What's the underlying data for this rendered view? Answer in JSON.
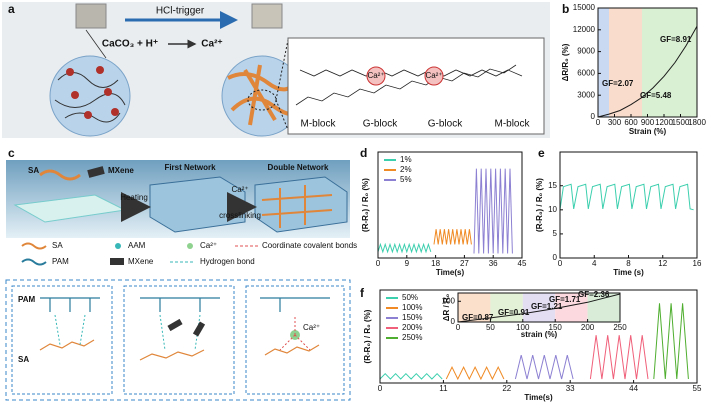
{
  "panel_labels": [
    "a",
    "b",
    "c",
    "d",
    "e",
    "f"
  ],
  "panel_a": {
    "trigger": "HCl-trigger",
    "reaction": "CaCO₃ + H⁺",
    "product": "Ca²⁺",
    "ions": [
      "Ca²⁺",
      "Ca²⁺"
    ],
    "blocks": [
      "M-block",
      "G-block",
      "G-block",
      "M-block"
    ]
  },
  "panel_c": {
    "inputs": [
      "SA",
      "MXene"
    ],
    "steps": [
      "Heating",
      "Ca²⁺",
      "crosslinking"
    ],
    "stages": [
      "First Network",
      "Double Network"
    ],
    "legend": [
      "SA",
      "AAM",
      "Ca²⁺",
      "Coordinate covalent bonds",
      "PAM",
      "MXene",
      "Hydrogen bond"
    ],
    "chains": [
      "PAM",
      "SA"
    ],
    "ion": "Ca²⁺"
  },
  "chart_data": [
    {
      "type": "line",
      "x_label": "Strain (%)",
      "y_label": "ΔR/R₀ (%)",
      "xlim": [
        0,
        1800
      ],
      "ylim": [
        0,
        15000
      ],
      "xticks": [
        0,
        300,
        600,
        900,
        1200,
        1500,
        1800
      ],
      "yticks": [
        0,
        3000,
        6000,
        9000,
        12000,
        15000
      ],
      "regions": [
        {
          "from": 0,
          "to": 200,
          "color": "#c9d9f2"
        },
        {
          "from": 200,
          "to": 800,
          "color": "#f9dccb"
        },
        {
          "from": 800,
          "to": 1800,
          "color": "#d9f0d3"
        }
      ],
      "annotations": [
        "GF=2.07",
        "GF=5.48",
        "GF=8.91"
      ],
      "series": [
        {
          "color": "#1a1a1a",
          "x": [
            0,
            200,
            400,
            600,
            800,
            1000,
            1200,
            1400,
            1600,
            1800
          ],
          "values": [
            0,
            400,
            900,
            1700,
            2700,
            4000,
            5600,
            7500,
            9800,
            12500
          ]
        }
      ]
    },
    {
      "type": "line",
      "x_label": "Time(s)",
      "y_label": "(R-R₀) / R₀ (%)",
      "legend": "upper left",
      "xlim": [
        0,
        45
      ],
      "ylim": [
        0,
        7
      ],
      "xticks": [
        0,
        9,
        18,
        27,
        36,
        45
      ],
      "series": [
        {
          "name": "1%",
          "color": "#3ccfae",
          "x": [
            0,
            0.75,
            1.5,
            2.25,
            3,
            3.75,
            4.5,
            5.25,
            6,
            6.75,
            7.5,
            8.25,
            9,
            9.75,
            10.5,
            11.25,
            12,
            12.75,
            13.5,
            14.25,
            15,
            15.75,
            16.5
          ],
          "values": [
            0.4,
            0.9,
            0.4,
            0.9,
            0.4,
            0.9,
            0.4,
            0.9,
            0.4,
            0.9,
            0.4,
            0.9,
            0.4,
            0.9,
            0.4,
            0.9,
            0.4,
            0.9,
            0.4,
            0.9,
            0.4,
            0.9,
            0.4
          ]
        },
        {
          "name": "2%",
          "color": "#f08a24",
          "x": [
            17.5,
            18.15,
            18.8,
            19.45,
            20.1,
            20.75,
            21.4,
            22.05,
            22.7,
            23.35,
            24,
            24.65,
            25.3,
            25.95,
            26.6,
            27.25,
            27.9,
            28.55,
            29.2
          ],
          "values": [
            0.9,
            1.9,
            0.9,
            1.9,
            0.9,
            1.9,
            0.9,
            1.9,
            0.9,
            1.9,
            0.9,
            1.9,
            0.9,
            1.9,
            0.9,
            1.9,
            0.9,
            1.9,
            0.9
          ]
        },
        {
          "name": "5%",
          "color": "#8c80d2",
          "x": [
            30,
            30.75,
            31.5,
            32.25,
            33,
            33.75,
            34.5,
            35.25,
            36,
            36.75,
            37.5,
            38.25,
            39,
            39.75,
            40.5,
            41.25,
            42
          ],
          "values": [
            0.3,
            5.9,
            0.3,
            5.9,
            0.3,
            5.9,
            0.3,
            5.9,
            0.3,
            5.9,
            0.3,
            5.9,
            0.3,
            5.9,
            0.3,
            5.9,
            0.3
          ]
        }
      ]
    },
    {
      "type": "line",
      "x_label": "Time (s)",
      "y_label": "(R-R₀) / R₀ (%)",
      "xlim": [
        0,
        16
      ],
      "ylim": [
        0,
        22
      ],
      "xticks": [
        0,
        4,
        8,
        12,
        16
      ],
      "yticks": [
        0,
        5,
        10,
        15
      ],
      "series": [
        {
          "color": "#3ccfae",
          "x": [
            0,
            0.4,
            1.3,
            1.6,
            2.1,
            3.0,
            3.3,
            3.8,
            4.7,
            5.0,
            5.5,
            6.4,
            6.7,
            7.2,
            8.1,
            8.4,
            8.9,
            9.8,
            10.1,
            10.6,
            11.5,
            11.8,
            12.3,
            13.2,
            13.5,
            14.0,
            14.9,
            15.2,
            15.6
          ],
          "values": [
            10,
            14.8,
            15.3,
            10.2,
            14.8,
            15.3,
            10.2,
            14.8,
            15.3,
            10.2,
            14.8,
            15.3,
            10.2,
            14.8,
            15.3,
            10.2,
            14.8,
            15.3,
            10.2,
            14.8,
            15.3,
            10.2,
            14.8,
            15.3,
            10.2,
            14.8,
            15.3,
            10.2,
            10
          ]
        }
      ]
    },
    {
      "type": "line",
      "x_label": "Time(s)",
      "y_label": "(R-R₀) / R₀ (%)",
      "legend": "upper left",
      "xlim": [
        0,
        55
      ],
      "ylim": [
        0,
        7
      ],
      "xticks": [
        0,
        11,
        22,
        33,
        44,
        55
      ],
      "series": [
        {
          "name": "50%",
          "color": "#3ccfae",
          "x": [
            0,
            0.9,
            1.8,
            2.7,
            3.6,
            4.5,
            5.4,
            6.3,
            7.2,
            8.1,
            9,
            9.9,
            10.8
          ],
          "values": [
            0.3,
            0.7,
            0.3,
            0.7,
            0.3,
            0.7,
            0.3,
            0.7,
            0.3,
            0.7,
            0.3,
            0.7,
            0.3
          ]
        },
        {
          "name": "100%",
          "color": "#f08a24",
          "x": [
            11.5,
            12.5,
            13.5,
            14.5,
            15.5,
            16.5,
            17.5,
            18.5,
            19.5,
            20.5,
            21.5
          ],
          "values": [
            0.3,
            1.2,
            0.3,
            1.2,
            0.3,
            1.2,
            0.3,
            1.2,
            0.3,
            1.2,
            0.3
          ]
        },
        {
          "name": "150%",
          "color": "#8c80d2",
          "x": [
            23.5,
            24.5,
            25.5,
            26.5,
            27.5,
            28.5,
            29.5,
            30.5,
            31.5,
            32.5,
            33.5
          ],
          "values": [
            0.3,
            2.1,
            0.3,
            2.1,
            0.3,
            2.1,
            0.3,
            2.1,
            0.3,
            2.1,
            0.3
          ]
        },
        {
          "name": "200%",
          "color": "#f0607a",
          "x": [
            36.5,
            37.5,
            38.5,
            39.5,
            40.5,
            41.5,
            42.5,
            43.5,
            44.5,
            45.5,
            46.5
          ],
          "values": [
            0.3,
            3.6,
            0.3,
            3.6,
            0.3,
            3.6,
            0.3,
            3.6,
            0.3,
            3.6,
            0.3
          ]
        },
        {
          "name": "250%",
          "color": "#4fae2f",
          "x": [
            47.5,
            48.5,
            49.5,
            50.5,
            51.5,
            52.5,
            53.5
          ],
          "values": [
            0.3,
            6,
            0.3,
            6,
            0.3,
            6,
            0.3
          ]
        }
      ]
    },
    {
      "type": "line",
      "x_label": "strain (%)",
      "y_label": "ΔR / R₀",
      "xlim": [
        0,
        250
      ],
      "ylim": [
        0,
        140
      ],
      "xticks": [
        0,
        50,
        100,
        150,
        200,
        250
      ],
      "yticks": [
        0,
        100
      ],
      "regions": [
        {
          "from": 0,
          "to": 50,
          "color": "#fbe0cc"
        },
        {
          "from": 50,
          "to": 100,
          "color": "#e3f1d6"
        },
        {
          "from": 100,
          "to": 150,
          "color": "#e4def3"
        },
        {
          "from": 150,
          "to": 200,
          "color": "#fbd9df"
        },
        {
          "from": 200,
          "to": 250,
          "color": "#d8ecd8"
        }
      ],
      "annotations": [
        "GF=0.87",
        "GF=0.91",
        "GF=1.21",
        "GF=1.71",
        "GF=2.36"
      ],
      "series": [
        {
          "color": "#1a1a1a",
          "x": [
            0,
            50,
            100,
            150,
            200,
            250
          ],
          "values": [
            0,
            20,
            40,
            65,
            95,
            135
          ]
        }
      ]
    }
  ]
}
